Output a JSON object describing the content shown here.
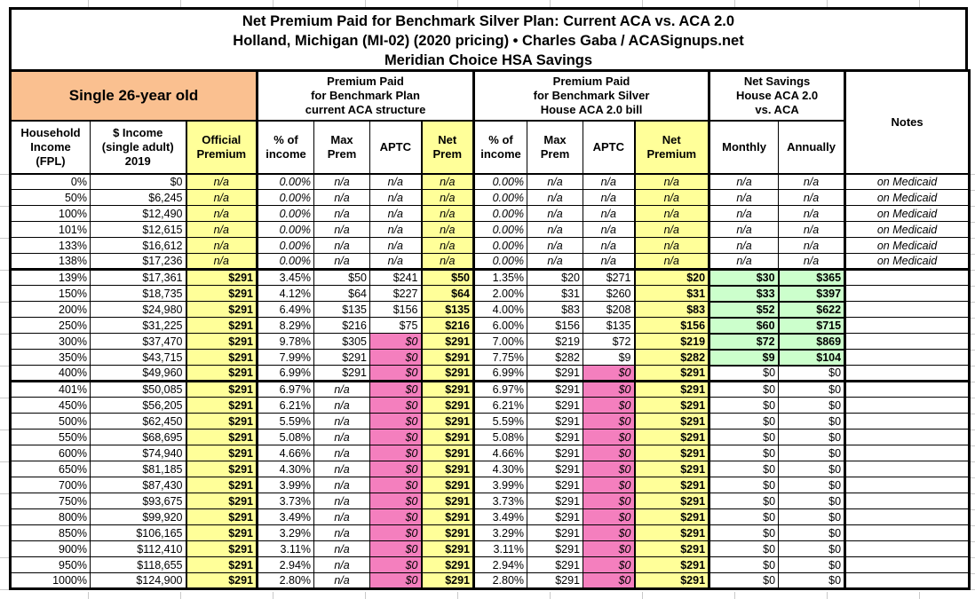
{
  "title": {
    "line1": "Net Premium Paid for Benchmark Silver Plan: Current ACA vs. ACA 2.0",
    "line2": "Holland, Michigan (MI-02) (2020 pricing) • Charles Gaba / ACASignups.net",
    "line3": "Meridian Choice HSA Savings"
  },
  "groups": {
    "subject": "Single 26-year old",
    "aca": "Premium Paid\nfor Benchmark Plan\ncurrent ACA structure",
    "house": "Premium Paid\nfor Benchmark Silver\nHouse ACA 2.0 bill",
    "savings": "Net Savings\nHouse ACA 2.0\nvs. ACA",
    "notes_label": "Notes"
  },
  "headers": [
    "Household\nIncome\n(FPL)",
    "$ Income\n(single adult)\n2019",
    "Official\nPremium",
    "% of\nincome",
    "Max\nPrem",
    "APTC",
    "Net\nPrem",
    "% of\nincome",
    "Max\nPrem",
    "APTC",
    "Net\nPremium",
    "Monthly",
    "Annually"
  ],
  "colors": {
    "header_orange": "#FAC090",
    "highlight_yellow": "#FFFF99",
    "zero_aptc_pink": "#F47FBE",
    "savings_green": "#CCFFCC",
    "border_black": "#000000",
    "gridline_gray": "#C9C9C9"
  },
  "rows": [
    {
      "section": "medicaid",
      "fpl": "0%",
      "income": "$0",
      "official": "n/a",
      "aca": {
        "pct": "0.00%",
        "max": "n/a",
        "aptc": "n/a",
        "net": "n/a"
      },
      "house": {
        "pct": "0.00%",
        "max": "n/a",
        "aptc": "n/a",
        "net": "n/a"
      },
      "savings": {
        "monthly": "n/a",
        "annually": "n/a"
      },
      "notes": "on Medicaid"
    },
    {
      "section": "medicaid",
      "fpl": "50%",
      "income": "$6,245",
      "official": "n/a",
      "aca": {
        "pct": "0.00%",
        "max": "n/a",
        "aptc": "n/a",
        "net": "n/a"
      },
      "house": {
        "pct": "0.00%",
        "max": "n/a",
        "aptc": "n/a",
        "net": "n/a"
      },
      "savings": {
        "monthly": "n/a",
        "annually": "n/a"
      },
      "notes": "on Medicaid"
    },
    {
      "section": "medicaid",
      "fpl": "100%",
      "income": "$12,490",
      "official": "n/a",
      "aca": {
        "pct": "0.00%",
        "max": "n/a",
        "aptc": "n/a",
        "net": "n/a"
      },
      "house": {
        "pct": "0.00%",
        "max": "n/a",
        "aptc": "n/a",
        "net": "n/a"
      },
      "savings": {
        "monthly": "n/a",
        "annually": "n/a"
      },
      "notes": "on Medicaid"
    },
    {
      "section": "medicaid",
      "fpl": "101%",
      "income": "$12,615",
      "official": "n/a",
      "aca": {
        "pct": "0.00%",
        "max": "n/a",
        "aptc": "n/a",
        "net": "n/a"
      },
      "house": {
        "pct": "0.00%",
        "max": "n/a",
        "aptc": "n/a",
        "net": "n/a"
      },
      "savings": {
        "monthly": "n/a",
        "annually": "n/a"
      },
      "notes": "on Medicaid"
    },
    {
      "section": "medicaid",
      "fpl": "133%",
      "income": "$16,612",
      "official": "n/a",
      "aca": {
        "pct": "0.00%",
        "max": "n/a",
        "aptc": "n/a",
        "net": "n/a"
      },
      "house": {
        "pct": "0.00%",
        "max": "n/a",
        "aptc": "n/a",
        "net": "n/a"
      },
      "savings": {
        "monthly": "n/a",
        "annually": "n/a"
      },
      "notes": "on Medicaid"
    },
    {
      "section": "medicaid",
      "fpl": "138%",
      "income": "$17,236",
      "official": "n/a",
      "aca": {
        "pct": "0.00%",
        "max": "n/a",
        "aptc": "n/a",
        "net": "n/a"
      },
      "house": {
        "pct": "0.00%",
        "max": "n/a",
        "aptc": "n/a",
        "net": "n/a"
      },
      "savings": {
        "monthly": "n/a",
        "annually": "n/a"
      },
      "notes": "on Medicaid"
    },
    {
      "section": "aptc",
      "fpl": "139%",
      "income": "$17,361",
      "official": "$291",
      "aca": {
        "pct": "3.45%",
        "max": "$50",
        "aptc": "$241",
        "net": "$50"
      },
      "house": {
        "pct": "1.35%",
        "max": "$20",
        "aptc": "$271",
        "net": "$20"
      },
      "savings": {
        "monthly": "$30",
        "annually": "$365"
      },
      "notes": ""
    },
    {
      "section": "aptc",
      "fpl": "150%",
      "income": "$18,735",
      "official": "$291",
      "aca": {
        "pct": "4.12%",
        "max": "$64",
        "aptc": "$227",
        "net": "$64"
      },
      "house": {
        "pct": "2.00%",
        "max": "$31",
        "aptc": "$260",
        "net": "$31"
      },
      "savings": {
        "monthly": "$33",
        "annually": "$397"
      },
      "notes": ""
    },
    {
      "section": "aptc",
      "fpl": "200%",
      "income": "$24,980",
      "official": "$291",
      "aca": {
        "pct": "6.49%",
        "max": "$135",
        "aptc": "$156",
        "net": "$135"
      },
      "house": {
        "pct": "4.00%",
        "max": "$83",
        "aptc": "$208",
        "net": "$83"
      },
      "savings": {
        "monthly": "$52",
        "annually": "$622"
      },
      "notes": ""
    },
    {
      "section": "aptc",
      "fpl": "250%",
      "income": "$31,225",
      "official": "$291",
      "aca": {
        "pct": "8.29%",
        "max": "$216",
        "aptc": "$75",
        "net": "$216"
      },
      "house": {
        "pct": "6.00%",
        "max": "$156",
        "aptc": "$135",
        "net": "$156"
      },
      "savings": {
        "monthly": "$60",
        "annually": "$715"
      },
      "notes": ""
    },
    {
      "section": "aptc",
      "fpl": "300%",
      "income": "$37,470",
      "official": "$291",
      "aca": {
        "pct": "9.78%",
        "max": "$305",
        "aptc": "$0",
        "net": "$291"
      },
      "house": {
        "pct": "7.00%",
        "max": "$219",
        "aptc": "$72",
        "net": "$219"
      },
      "savings": {
        "monthly": "$72",
        "annually": "$869"
      },
      "notes": ""
    },
    {
      "section": "aptc",
      "fpl": "350%",
      "income": "$43,715",
      "official": "$291",
      "aca": {
        "pct": "7.99%",
        "max": "$291",
        "aptc": "$0",
        "net": "$291"
      },
      "house": {
        "pct": "7.75%",
        "max": "$282",
        "aptc": "$9",
        "net": "$282"
      },
      "savings": {
        "monthly": "$9",
        "annually": "$104"
      },
      "notes": ""
    },
    {
      "section": "aptc",
      "fpl": "400%",
      "income": "$49,960",
      "official": "$291",
      "aca": {
        "pct": "6.99%",
        "max": "$291",
        "aptc": "$0",
        "net": "$291"
      },
      "house": {
        "pct": "6.99%",
        "max": "$291",
        "aptc": "$0",
        "net": "$291"
      },
      "savings": {
        "monthly": "$0",
        "annually": "$0"
      },
      "notes": ""
    },
    {
      "section": "over400",
      "fpl": "401%",
      "income": "$50,085",
      "official": "$291",
      "aca": {
        "pct": "6.97%",
        "max": "n/a",
        "aptc": "$0",
        "net": "$291"
      },
      "house": {
        "pct": "6.97%",
        "max": "$291",
        "aptc": "$0",
        "net": "$291"
      },
      "savings": {
        "monthly": "$0",
        "annually": "$0"
      },
      "notes": ""
    },
    {
      "section": "over400",
      "fpl": "450%",
      "income": "$56,205",
      "official": "$291",
      "aca": {
        "pct": "6.21%",
        "max": "n/a",
        "aptc": "$0",
        "net": "$291"
      },
      "house": {
        "pct": "6.21%",
        "max": "$291",
        "aptc": "$0",
        "net": "$291"
      },
      "savings": {
        "monthly": "$0",
        "annually": "$0"
      },
      "notes": ""
    },
    {
      "section": "over400",
      "fpl": "500%",
      "income": "$62,450",
      "official": "$291",
      "aca": {
        "pct": "5.59%",
        "max": "n/a",
        "aptc": "$0",
        "net": "$291"
      },
      "house": {
        "pct": "5.59%",
        "max": "$291",
        "aptc": "$0",
        "net": "$291"
      },
      "savings": {
        "monthly": "$0",
        "annually": "$0"
      },
      "notes": ""
    },
    {
      "section": "over400",
      "fpl": "550%",
      "income": "$68,695",
      "official": "$291",
      "aca": {
        "pct": "5.08%",
        "max": "n/a",
        "aptc": "$0",
        "net": "$291"
      },
      "house": {
        "pct": "5.08%",
        "max": "$291",
        "aptc": "$0",
        "net": "$291"
      },
      "savings": {
        "monthly": "$0",
        "annually": "$0"
      },
      "notes": ""
    },
    {
      "section": "over400",
      "fpl": "600%",
      "income": "$74,940",
      "official": "$291",
      "aca": {
        "pct": "4.66%",
        "max": "n/a",
        "aptc": "$0",
        "net": "$291"
      },
      "house": {
        "pct": "4.66%",
        "max": "$291",
        "aptc": "$0",
        "net": "$291"
      },
      "savings": {
        "monthly": "$0",
        "annually": "$0"
      },
      "notes": ""
    },
    {
      "section": "over400",
      "fpl": "650%",
      "income": "$81,185",
      "official": "$291",
      "aca": {
        "pct": "4.30%",
        "max": "n/a",
        "aptc": "$0",
        "net": "$291"
      },
      "house": {
        "pct": "4.30%",
        "max": "$291",
        "aptc": "$0",
        "net": "$291"
      },
      "savings": {
        "monthly": "$0",
        "annually": "$0"
      },
      "notes": ""
    },
    {
      "section": "over400",
      "fpl": "700%",
      "income": "$87,430",
      "official": "$291",
      "aca": {
        "pct": "3.99%",
        "max": "n/a",
        "aptc": "$0",
        "net": "$291"
      },
      "house": {
        "pct": "3.99%",
        "max": "$291",
        "aptc": "$0",
        "net": "$291"
      },
      "savings": {
        "monthly": "$0",
        "annually": "$0"
      },
      "notes": ""
    },
    {
      "section": "over400",
      "fpl": "750%",
      "income": "$93,675",
      "official": "$291",
      "aca": {
        "pct": "3.73%",
        "max": "n/a",
        "aptc": "$0",
        "net": "$291"
      },
      "house": {
        "pct": "3.73%",
        "max": "$291",
        "aptc": "$0",
        "net": "$291"
      },
      "savings": {
        "monthly": "$0",
        "annually": "$0"
      },
      "notes": ""
    },
    {
      "section": "over400",
      "fpl": "800%",
      "income": "$99,920",
      "official": "$291",
      "aca": {
        "pct": "3.49%",
        "max": "n/a",
        "aptc": "$0",
        "net": "$291"
      },
      "house": {
        "pct": "3.49%",
        "max": "$291",
        "aptc": "$0",
        "net": "$291"
      },
      "savings": {
        "monthly": "$0",
        "annually": "$0"
      },
      "notes": ""
    },
    {
      "section": "over400",
      "fpl": "850%",
      "income": "$106,165",
      "official": "$291",
      "aca": {
        "pct": "3.29%",
        "max": "n/a",
        "aptc": "$0",
        "net": "$291"
      },
      "house": {
        "pct": "3.29%",
        "max": "$291",
        "aptc": "$0",
        "net": "$291"
      },
      "savings": {
        "monthly": "$0",
        "annually": "$0"
      },
      "notes": ""
    },
    {
      "section": "over400",
      "fpl": "900%",
      "income": "$112,410",
      "official": "$291",
      "aca": {
        "pct": "3.11%",
        "max": "n/a",
        "aptc": "$0",
        "net": "$291"
      },
      "house": {
        "pct": "3.11%",
        "max": "$291",
        "aptc": "$0",
        "net": "$291"
      },
      "savings": {
        "monthly": "$0",
        "annually": "$0"
      },
      "notes": ""
    },
    {
      "section": "over400",
      "fpl": "950%",
      "income": "$118,655",
      "official": "$291",
      "aca": {
        "pct": "2.94%",
        "max": "n/a",
        "aptc": "$0",
        "net": "$291"
      },
      "house": {
        "pct": "2.94%",
        "max": "$291",
        "aptc": "$0",
        "net": "$291"
      },
      "savings": {
        "monthly": "$0",
        "annually": "$0"
      },
      "notes": ""
    },
    {
      "section": "over400",
      "fpl": "1000%",
      "income": "$124,900",
      "official": "$291",
      "aca": {
        "pct": "2.80%",
        "max": "n/a",
        "aptc": "$0",
        "net": "$291"
      },
      "house": {
        "pct": "2.80%",
        "max": "$291",
        "aptc": "$0",
        "net": "$291"
      },
      "savings": {
        "monthly": "$0",
        "annually": "$0"
      },
      "notes": ""
    }
  ]
}
